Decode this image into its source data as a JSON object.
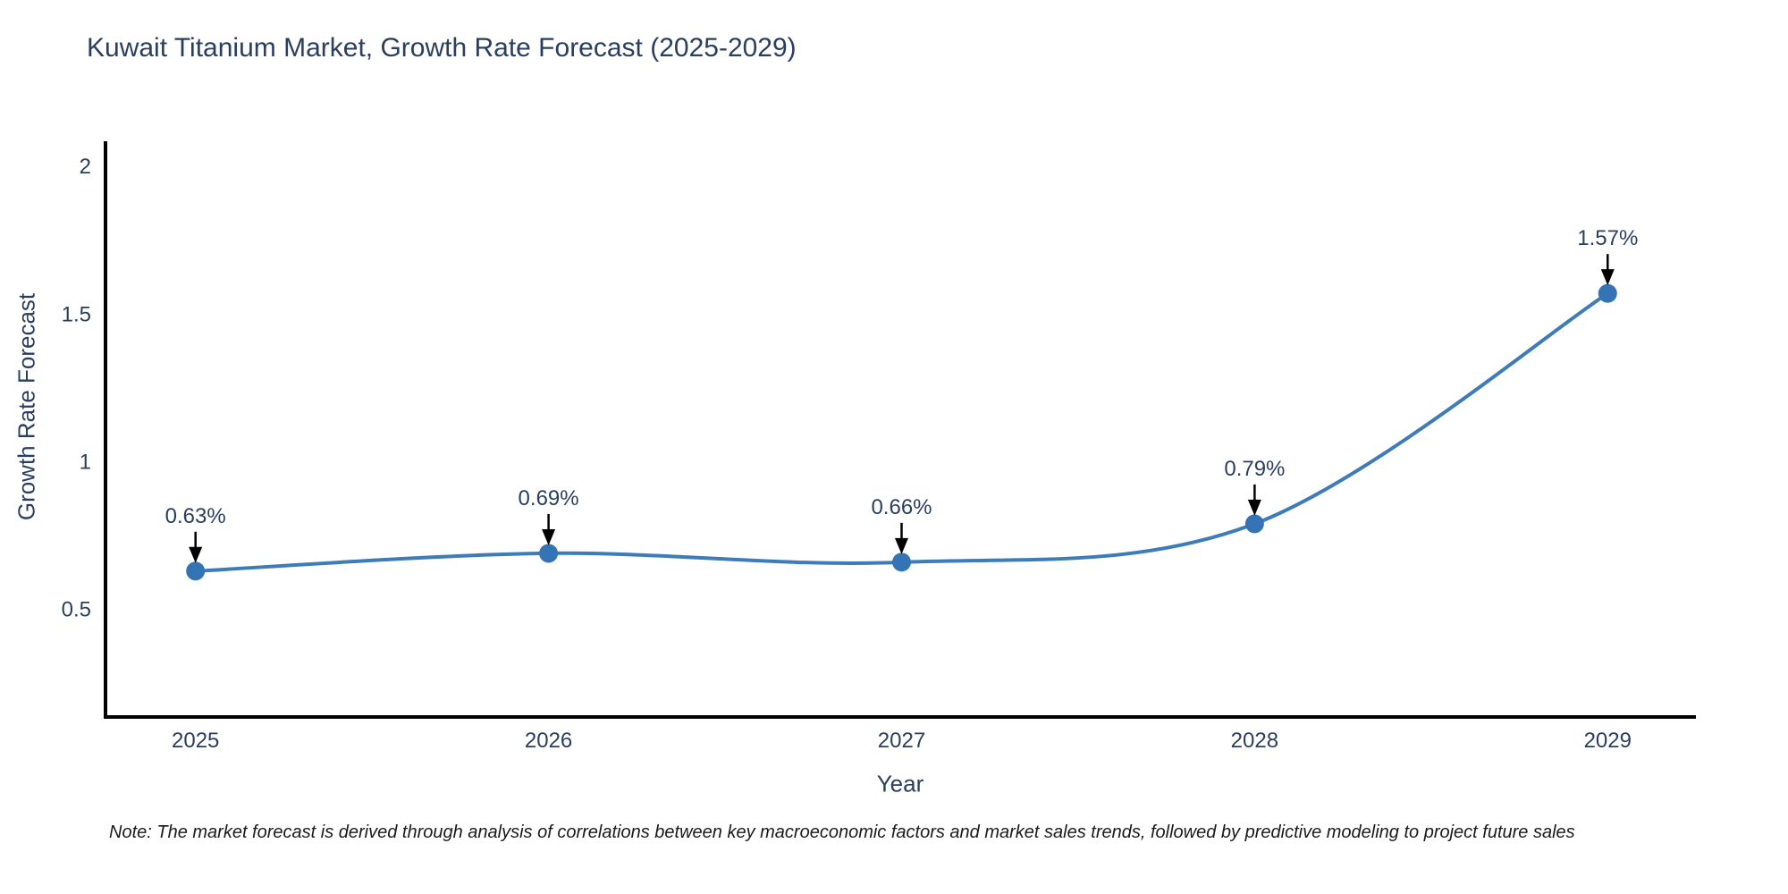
{
  "chart_data": {
    "type": "line",
    "title": "Kuwait Titanium Market, Growth Rate Forecast (2025-2029)",
    "xlabel": "Year",
    "ylabel": "Growth Rate Forecast",
    "x": [
      2025,
      2026,
      2027,
      2028,
      2029
    ],
    "series": [
      {
        "name": "Growth Rate Forecast",
        "values": [
          0.63,
          0.69,
          0.66,
          0.79,
          1.57
        ],
        "point_labels": [
          "0.63%",
          "0.69%",
          "0.66%",
          "0.79%",
          "1.57%"
        ]
      }
    ],
    "xtick_labels": [
      "2025",
      "2026",
      "2027",
      "2028",
      "2029"
    ],
    "ytick_values": [
      0.5,
      1,
      1.5,
      2
    ],
    "ytick_labels": [
      "0.5",
      "1",
      "1.5",
      "2"
    ],
    "xlim": [
      2024.745,
      2029.25
    ],
    "ylim": [
      0.136,
      2.085
    ],
    "grid": false,
    "legend_position": "none",
    "line_shape": "spline",
    "colors": {
      "line": "#3d7cb8",
      "marker": "#3474b4",
      "axis_line": "#000000",
      "text": "#2a3f5f",
      "annotation_text": "#2a3f5f",
      "annotation_arrow": "#000000",
      "background": "#ffffff"
    }
  },
  "note": "Note: The market forecast is derived through analysis of correlations between key macroeconomic factors and market sales trends, followed by predictive modeling to project future sales"
}
